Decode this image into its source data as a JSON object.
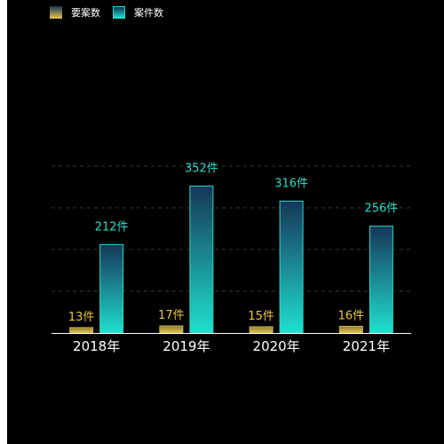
{
  "chart_data": {
    "type": "bar",
    "categories": [
      "2018年",
      "2019年",
      "2020年",
      "2021年"
    ],
    "series": [
      {
        "name": "要案数",
        "values": [
          13,
          17,
          15,
          16
        ],
        "labels": [
          "13件",
          "17件",
          "15件",
          "16件"
        ],
        "color": "#e8c84a",
        "label_color": "#e9c83c"
      },
      {
        "name": "案件数",
        "values": [
          212,
          352,
          316,
          256
        ],
        "labels": [
          "212件",
          "352件",
          "316件",
          "256件"
        ],
        "color": "#1fe0cd",
        "label_color": "#28dcc8"
      }
    ],
    "ylim": [
      0,
      400
    ],
    "grid": true,
    "legend_position": "top-left",
    "colors": {
      "background": "#000000",
      "grid": "#2a3a3a",
      "axis": "#ffffff"
    }
  }
}
